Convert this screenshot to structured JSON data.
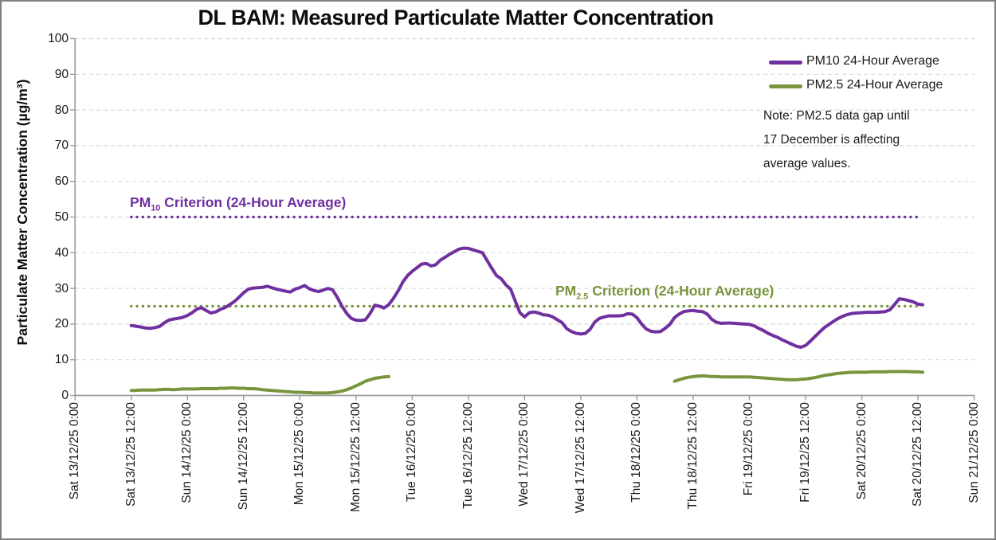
{
  "title": "DL BAM: Measured Particulate Matter Concentration",
  "y_axis": {
    "title": "Particulate Matter Concentration (µg/m³)",
    "ticks": [
      0,
      10,
      20,
      30,
      40,
      50,
      60,
      70,
      80,
      90,
      100
    ]
  },
  "x_axis": {
    "ticks": [
      "Sat 13/12/25 0:00",
      "Sat 13/12/25 12:00",
      "Sun 14/12/25 0:00",
      "Sun 14/12/25 12:00",
      "Mon 15/12/25 0:00",
      "Mon 15/12/25 12:00",
      "Tue 16/12/25 0:00",
      "Tue 16/12/25 12:00",
      "Wed 17/12/25 0:00",
      "Wed 17/12/25 12:00",
      "Thu 18/12/25 0:00",
      "Thu 18/12/25 12:00",
      "Fri 19/12/25 0:00",
      "Fri 19/12/25 12:00",
      "Sat 20/12/25 0:00",
      "Sat 20/12/25 12:00",
      "Sun 21/12/25 0:00"
    ]
  },
  "legend": [
    {
      "label": "PM10 24-Hour Average",
      "color": "#7030A0"
    },
    {
      "label": "PM2.5 24-Hour Average",
      "color": "#78953E"
    }
  ],
  "note": {
    "line1": "Note: PM2.5 data gap until",
    "line2": "17 December is affecting",
    "line3": "average values."
  },
  "criteria": [
    {
      "prefix": "PM",
      "sub": "10",
      "rest": " Criterion (24-Hour Average)",
      "value": 50,
      "color": "#7030A0"
    },
    {
      "prefix": "PM",
      "sub": "2.5",
      "rest": " Criterion (24-Hour Average)",
      "value": 25,
      "color": "#78953E"
    }
  ],
  "chart_data": {
    "type": "line",
    "title": "DL BAM: Measured Particulate Matter Concentration",
    "ylabel": "Particulate Matter Concentration (µg/m³)",
    "ylim": [
      0,
      100
    ],
    "grid": "horizontal-dashed",
    "legend_position": "top-right",
    "x_unit": "hours since Sat 13/12/25 0:00",
    "x_range_hours": [
      0,
      192
    ],
    "x_tick_interval_hours": 12,
    "reference_lines": [
      {
        "name": "PM10 Criterion (24-Hour Average)",
        "value": 50,
        "color": "#7030A0",
        "style": "dotted",
        "span_hours": [
          12,
          180.5
        ]
      },
      {
        "name": "PM2.5 Criterion (24-Hour Average)",
        "value": 25,
        "color": "#78953E",
        "style": "dotted",
        "span_hours": [
          12,
          180.5
        ]
      }
    ],
    "series": [
      {
        "name": "PM10 24-Hour Average",
        "color": "#7030A0",
        "step_hours": 1,
        "segments": [
          {
            "start_hour": 12,
            "values": [
              19.6,
              19.4,
              19.2,
              18.9,
              18.8,
              19.0,
              19.3,
              20.3,
              21.1,
              21.4,
              21.6,
              21.9,
              22.4,
              23.2,
              24.2,
              24.6,
              23.8,
              23.1,
              23.4,
              24.1,
              24.6,
              25.4,
              26.3,
              27.5,
              28.8,
              29.8,
              30.1,
              30.2,
              30.3,
              30.6,
              30.2,
              29.8,
              29.5,
              29.2,
              29.0,
              29.8,
              30.2,
              30.8,
              29.9,
              29.4,
              29.1,
              29.5,
              30.0,
              29.6,
              27.5,
              25.0,
              23.0,
              21.6,
              21.1,
              21.0,
              21.2,
              23.0,
              25.3,
              25.0,
              24.5,
              25.5,
              27.2,
              29.3,
              31.8,
              33.6,
              34.8,
              35.8,
              36.8,
              37.0,
              36.3,
              36.6,
              37.9,
              38.7,
              39.6,
              40.3,
              41.0,
              41.3,
              41.2,
              40.8,
              40.4,
              40.0,
              37.8,
              35.6,
              33.6,
              32.7,
              31.0,
              29.8,
              26.5,
              23.2,
              22.0,
              23.2,
              23.4,
              23.1,
              22.6,
              22.5,
              22.0,
              21.2,
              20.4,
              18.7,
              17.9,
              17.4,
              17.2,
              17.4,
              18.6,
              20.6,
              21.6,
              22.0,
              22.3,
              22.3,
              22.3,
              22.4,
              22.9,
              22.8,
              21.8,
              20.0,
              18.6,
              18.0,
              17.8,
              17.9,
              18.8,
              19.9,
              21.8,
              22.8,
              23.5,
              23.7,
              23.8,
              23.6,
              23.5,
              22.8,
              21.3,
              20.5,
              20.2,
              20.3,
              20.3,
              20.2,
              20.1,
              20.0,
              19.9,
              19.5,
              18.8,
              18.2,
              17.4,
              16.8,
              16.3,
              15.6,
              15.0,
              14.4,
              13.8,
              13.5,
              14.0,
              15.2,
              16.5,
              17.8,
              19.0,
              19.9,
              20.8,
              21.6,
              22.2,
              22.7,
              23.0,
              23.1,
              23.2,
              23.3,
              23.3,
              23.3,
              23.4,
              23.5,
              24.0,
              25.5,
              27.1,
              26.9,
              26.6,
              26.2,
              25.6,
              25.4
            ]
          }
        ]
      },
      {
        "name": "PM2.5 24-Hour Average",
        "color": "#78953E",
        "step_hours": 1,
        "segments": [
          {
            "start_hour": 12,
            "values": [
              1.4,
              1.4,
              1.5,
              1.5,
              1.5,
              1.5,
              1.6,
              1.7,
              1.7,
              1.6,
              1.7,
              1.8,
              1.8,
              1.8,
              1.8,
              1.9,
              1.9,
              1.9,
              1.9,
              2.0,
              2.0,
              2.1,
              2.1,
              2.0,
              2.0,
              1.9,
              1.9,
              1.8,
              1.6,
              1.5,
              1.4,
              1.3,
              1.2,
              1.1,
              1.0,
              0.9,
              0.9,
              0.8,
              0.8,
              0.7,
              0.7,
              0.7,
              0.7,
              0.8,
              1.0,
              1.2,
              1.6,
              2.1,
              2.7,
              3.3,
              4.0,
              4.4,
              4.8,
              5.0,
              5.2,
              5.3
            ]
          },
          {
            "start_hour": 128,
            "values": [
              4.0,
              4.4,
              4.8,
              5.1,
              5.3,
              5.4,
              5.5,
              5.4,
              5.3,
              5.3,
              5.2,
              5.2,
              5.2,
              5.2,
              5.2,
              5.2,
              5.2,
              5.1,
              5.0,
              4.9,
              4.8,
              4.7,
              4.6,
              4.5,
              4.4,
              4.4,
              4.4,
              4.5,
              4.6,
              4.8,
              5.0,
              5.3,
              5.6,
              5.8,
              6.0,
              6.2,
              6.3,
              6.4,
              6.5,
              6.5,
              6.5,
              6.5,
              6.6,
              6.6,
              6.6,
              6.6,
              6.7,
              6.7,
              6.7,
              6.7,
              6.7,
              6.6,
              6.6,
              6.5
            ]
          }
        ]
      }
    ]
  }
}
